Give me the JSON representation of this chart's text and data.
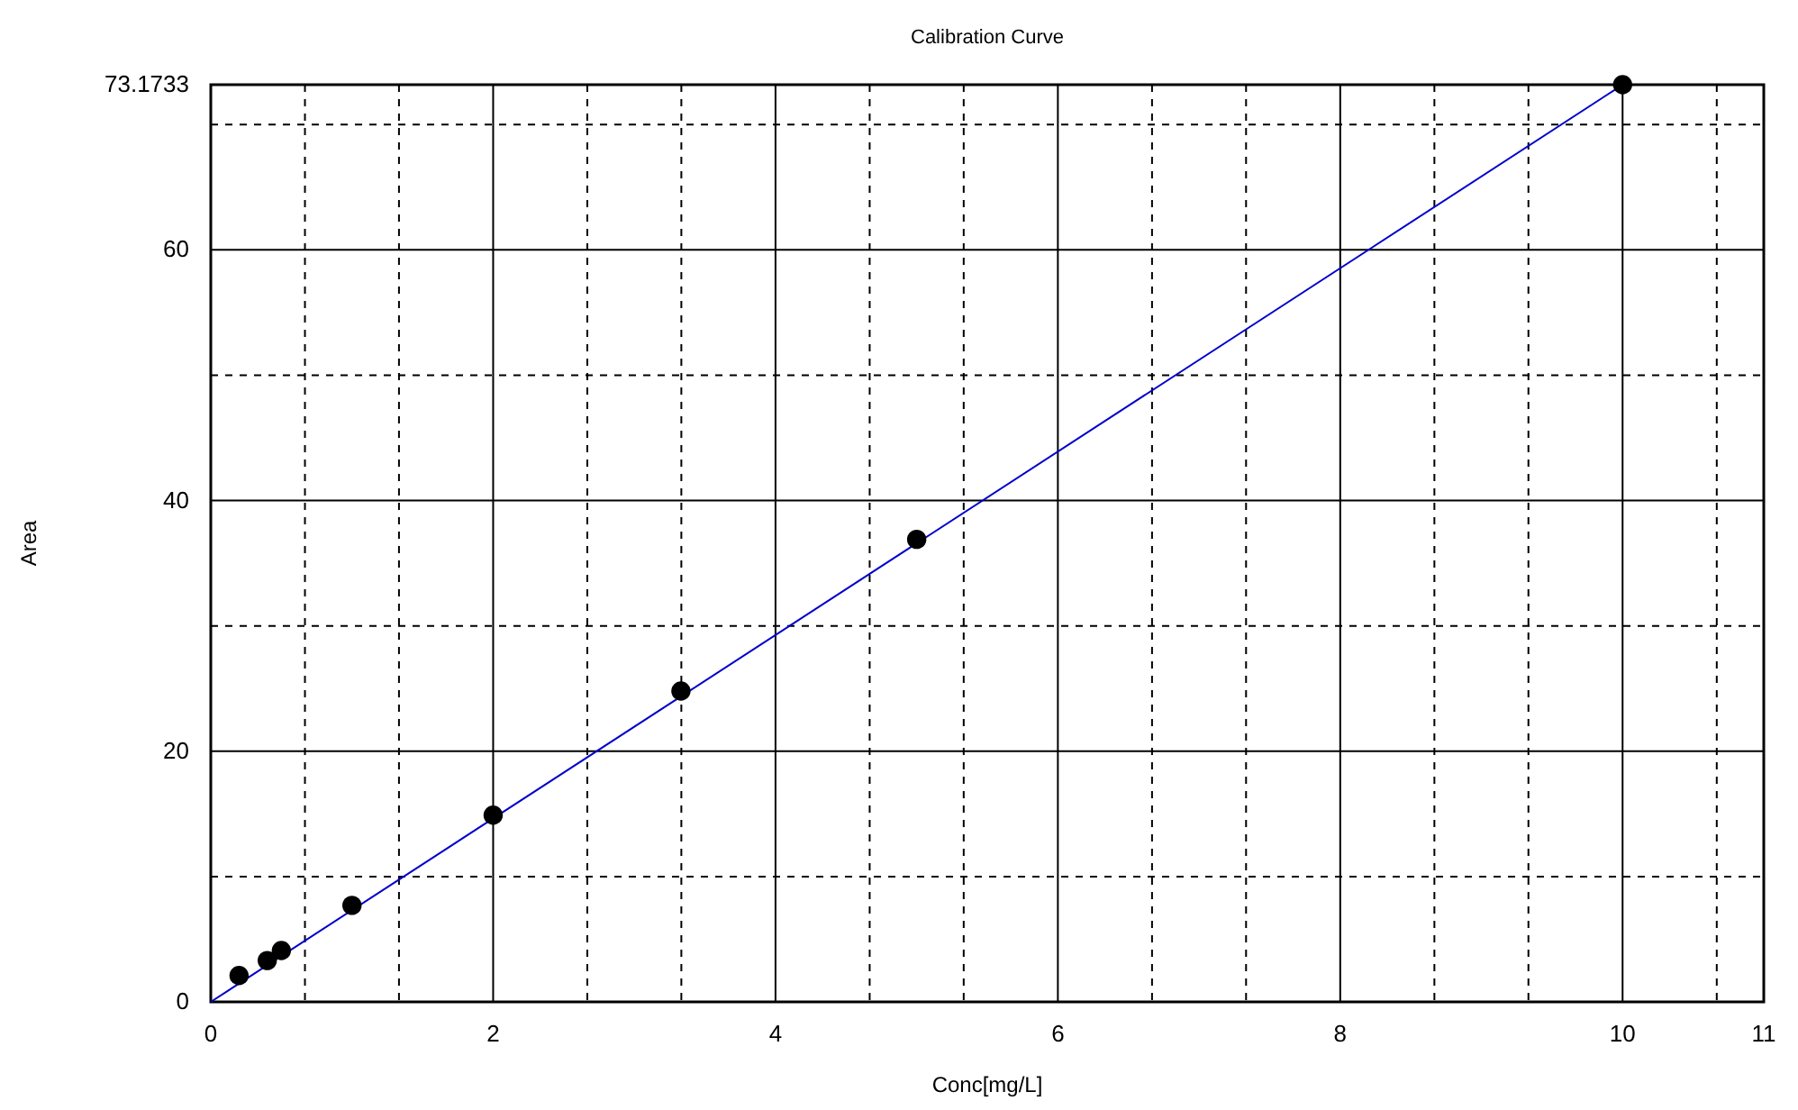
{
  "chart_data": {
    "type": "scatter",
    "title": "Calibration Curve",
    "xlabel": "Conc[mg/L]",
    "ylabel": "Area",
    "x": [
      0.2,
      0.4,
      0.5,
      1,
      2,
      3.33,
      5,
      10
    ],
    "series": [
      {
        "color": "#000000",
        "values": [
          2.1,
          3.3,
          4.1,
          7.7,
          14.9,
          24.8,
          36.9,
          73.17
        ],
        "marker": "circle"
      },
      {
        "type": "line",
        "color": "#0000cc",
        "x": [
          0,
          10
        ],
        "values": [
          0,
          73.17
        ],
        "marker": "none",
        "line_style": "solid"
      }
    ],
    "xlim": [
      0,
      11
    ],
    "ylim": [
      0,
      73.1733
    ],
    "xticks": [
      0,
      {
        "value": 0.667,
        "label": null
      },
      {
        "value": 1.333,
        "label": null
      },
      2,
      {
        "value": 2.667,
        "label": null
      },
      {
        "value": 3.333,
        "label": null
      },
      4,
      {
        "value": 4.667,
        "label": null
      },
      {
        "value": 5.333,
        "label": null
      },
      6,
      {
        "value": 6.667,
        "label": null
      },
      {
        "value": 7.333,
        "label": null
      },
      8,
      {
        "value": 8.667,
        "label": null
      },
      {
        "value": 9.333,
        "label": null
      },
      10,
      {
        "value": 10.667,
        "label": null
      },
      11
    ],
    "yticks": [
      0,
      {
        "value": 10,
        "label": null
      },
      20,
      {
        "value": 30,
        "label": null
      },
      40,
      {
        "value": 50,
        "label": null
      },
      60,
      {
        "value": 70,
        "label": null
      },
      73.1733
    ],
    "grid": true
  }
}
